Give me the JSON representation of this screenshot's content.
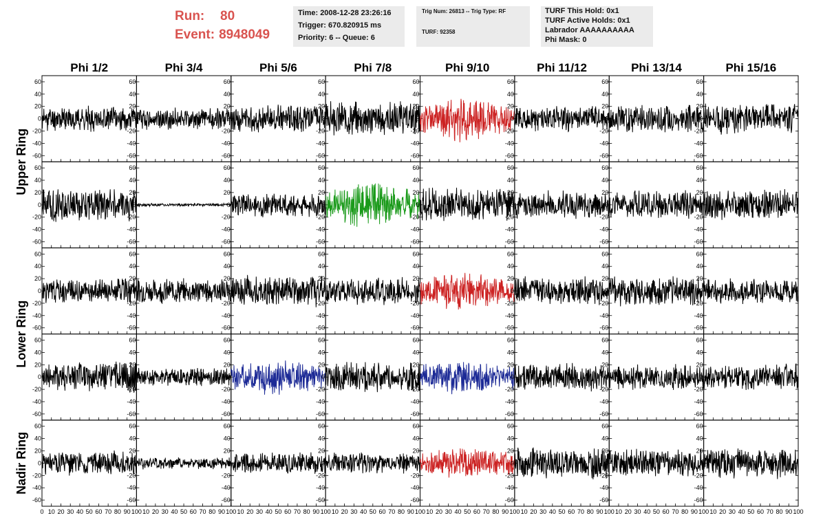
{
  "header": {
    "run_label": "Run:",
    "run_value": "80",
    "event_label": "Event:",
    "event_value": "8948049"
  },
  "info_time": {
    "time": "Time: 2008-12-28 23:26:16",
    "trigger": "Trigger: 670.820915 ms",
    "priority": "Priority: 6 -- Queue: 6"
  },
  "info_trig": {
    "trig": "Trig Num: 26813 -- Trig Type: RF",
    "turf": "TURF: 92358"
  },
  "info_turf": {
    "this_hold": "TURF This Hold: 0x1",
    "active_holds": "TURF Active Holds: 0x1",
    "labrador": "Labrador AAAAAAAAAA",
    "phi_mask": "Phi Mask: 0"
  },
  "chart_data": {
    "type": "line",
    "columns": [
      "Phi 1/2",
      "Phi 3/4",
      "Phi 5/6",
      "Phi 7/8",
      "Phi 9/10",
      "Phi 11/12",
      "Phi 13/14",
      "Phi 15/16"
    ],
    "ring_labels": [
      "Upper Ring",
      "Lower Ring",
      "Nadir Ring"
    ],
    "xlim": [
      0,
      100
    ],
    "ylim": [
      -70,
      70
    ],
    "y_ticks": [
      -60,
      -40,
      -20,
      0,
      20,
      40,
      60
    ],
    "x_tick_labels": [
      "0",
      "10",
      "20",
      "30",
      "40",
      "50",
      "60",
      "70",
      "80",
      "90",
      "100"
    ],
    "default_color": "#000000",
    "highlight_colors": {
      "red": "#cc2222",
      "green": "#1a9a1a",
      "blue": "#1c2a96"
    },
    "rows": [
      {
        "ring": "Upper Ring",
        "channels": [
          {
            "color": "#000000",
            "amplitude": 16,
            "seed": 11
          },
          {
            "color": "#000000",
            "amplitude": 14,
            "seed": 12
          },
          {
            "color": "#000000",
            "amplitude": 18,
            "seed": 13
          },
          {
            "color": "#000000",
            "amplitude": 22,
            "seed": 14
          },
          {
            "color": "#cc2222",
            "amplitude": 30,
            "seed": 15
          },
          {
            "color": "#000000",
            "amplitude": 16,
            "seed": 16
          },
          {
            "color": "#000000",
            "amplitude": 18,
            "seed": 17
          },
          {
            "color": "#000000",
            "amplitude": 20,
            "seed": 18
          }
        ]
      },
      {
        "ring": "Upper Ring",
        "channels": [
          {
            "color": "#000000",
            "amplitude": 22,
            "seed": 21
          },
          {
            "color": "#000000",
            "amplitude": 2,
            "seed": 22
          },
          {
            "color": "#000000",
            "amplitude": 16,
            "seed": 23
          },
          {
            "color": "#1a9a1a",
            "amplitude": 30,
            "seed": 24
          },
          {
            "color": "#000000",
            "amplitude": 22,
            "seed": 25
          },
          {
            "color": "#000000",
            "amplitude": 18,
            "seed": 26
          },
          {
            "color": "#000000",
            "amplitude": 18,
            "seed": 27
          },
          {
            "color": "#000000",
            "amplitude": 20,
            "seed": 28
          }
        ]
      },
      {
        "ring": "Lower Ring",
        "channels": [
          {
            "color": "#000000",
            "amplitude": 16,
            "seed": 31
          },
          {
            "color": "#000000",
            "amplitude": 16,
            "seed": 32
          },
          {
            "color": "#000000",
            "amplitude": 20,
            "seed": 33
          },
          {
            "color": "#000000",
            "amplitude": 18,
            "seed": 34
          },
          {
            "color": "#cc2222",
            "amplitude": 26,
            "seed": 35
          },
          {
            "color": "#000000",
            "amplitude": 18,
            "seed": 36
          },
          {
            "color": "#000000",
            "amplitude": 20,
            "seed": 37
          },
          {
            "color": "#000000",
            "amplitude": 16,
            "seed": 38
          }
        ]
      },
      {
        "ring": "Lower Ring",
        "channels": [
          {
            "color": "#000000",
            "amplitude": 20,
            "seed": 41
          },
          {
            "color": "#000000",
            "amplitude": 12,
            "seed": 42
          },
          {
            "color": "#1c2a96",
            "amplitude": 24,
            "seed": 43
          },
          {
            "color": "#000000",
            "amplitude": 20,
            "seed": 44
          },
          {
            "color": "#1c2a96",
            "amplitude": 24,
            "seed": 45
          },
          {
            "color": "#000000",
            "amplitude": 18,
            "seed": 46
          },
          {
            "color": "#000000",
            "amplitude": 16,
            "seed": 47
          },
          {
            "color": "#000000",
            "amplitude": 18,
            "seed": 48
          }
        ]
      },
      {
        "ring": "Nadir Ring",
        "channels": [
          {
            "color": "#000000",
            "amplitude": 16,
            "seed": 51
          },
          {
            "color": "#000000",
            "amplitude": 8,
            "seed": 52
          },
          {
            "color": "#000000",
            "amplitude": 14,
            "seed": 53
          },
          {
            "color": "#000000",
            "amplitude": 14,
            "seed": 54
          },
          {
            "color": "#cc2222",
            "amplitude": 22,
            "seed": 55
          },
          {
            "color": "#000000",
            "amplitude": 20,
            "seed": 56
          },
          {
            "color": "#000000",
            "amplitude": 18,
            "seed": 57
          },
          {
            "color": "#000000",
            "amplitude": 20,
            "seed": 58
          }
        ]
      }
    ]
  }
}
